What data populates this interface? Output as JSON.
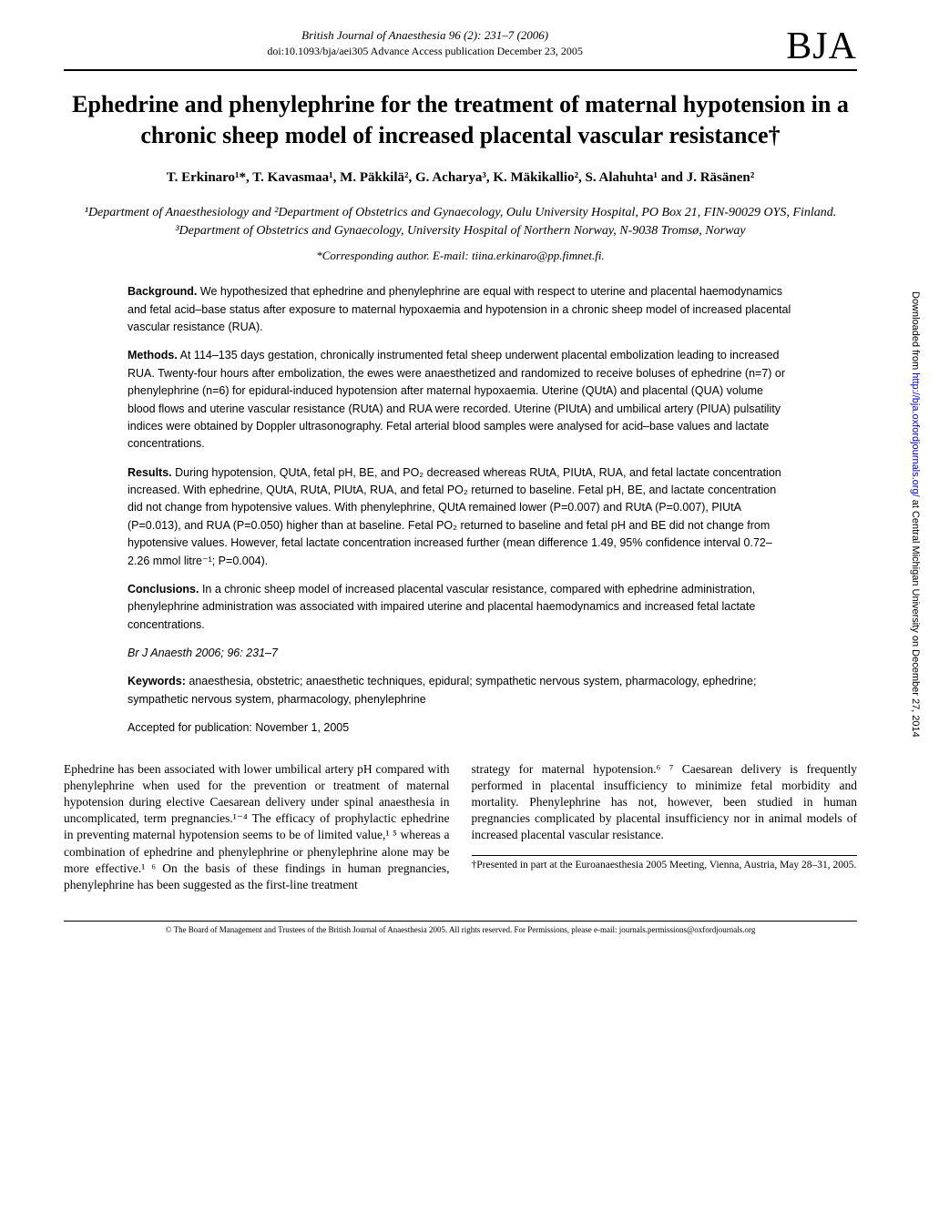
{
  "header": {
    "meta": "British Journal of Anaesthesia 96 (2): 231–7 (2006)",
    "doi": "doi:10.1093/bja/aei305   Advance Access publication December 23, 2005",
    "logo": "BJA"
  },
  "title": "Ephedrine and phenylephrine for the treatment of maternal hypotension in a chronic sheep model of increased placental vascular resistance†",
  "authors": "T. Erkinaro¹*, T. Kavasmaa¹, M. Päkkilä², G. Acharya³, K. Mäkikallio², S. Alahuhta¹ and J. Räsänen²",
  "affiliations": "¹Department of Anaesthesiology and ²Department of Obstetrics and Gynaecology, Oulu University Hospital, PO Box 21, FIN-90029 OYS, Finland. ³Department of Obstetrics and Gynaecology, University Hospital of Northern Norway, N-9038 Tromsø, Norway",
  "corresponding": "*Corresponding author. E-mail: tiina.erkinaro@pp.fimnet.fi.",
  "abstract": {
    "background_label": "Background.",
    "background": " We hypothesized that ephedrine and phenylephrine are equal with respect to uterine and placental haemodynamics and fetal acid–base status after exposure to maternal hypoxaemia and hypotension in a chronic sheep model of increased placental vascular resistance (RUA).",
    "methods_label": "Methods.",
    "methods": " At 114–135 days gestation, chronically instrumented fetal sheep underwent placental embolization leading to increased RUA. Twenty-four hours after embolization, the ewes were anaesthetized and randomized to receive boluses of ephedrine (n=7) or phenylephrine (n=6) for epidural-induced hypotension after maternal hypoxaemia. Uterine (QUtA) and placental (QUA) volume blood flows and uterine vascular resistance (RUtA) and RUA were recorded. Uterine (PIUtA) and umbilical artery (PIUA) pulsatility indices were obtained by Doppler ultrasonography. Fetal arterial blood samples were analysed for acid–base values and lactate concentrations.",
    "results_label": "Results.",
    "results": " During hypotension, QUtA, fetal pH, BE, and PO₂ decreased whereas RUtA, PIUtA, RUA, and fetal lactate concentration increased. With ephedrine, QUtA, RUtA, PIUtA, RUA, and fetal PO₂ returned to baseline. Fetal pH, BE, and lactate concentration did not change from hypotensive values. With phenylephrine, QUtA remained lower (P=0.007) and RUtA (P=0.007), PIUtA (P=0.013), and RUA (P=0.050) higher than at baseline. Fetal PO₂ returned to baseline and fetal pH and BE did not change from hypotensive values. However, fetal lactate concentration increased further (mean difference 1.49, 95% confidence interval 0.72–2.26 mmol litre⁻¹; P=0.004).",
    "conclusions_label": "Conclusions.",
    "conclusions": " In a chronic sheep model of increased placental vascular resistance, compared with ephedrine administration, phenylephrine administration was associated with impaired uterine and placental haemodynamics and increased fetal lactate concentrations.",
    "citation": "Br J Anaesth 2006; 96: 231–7",
    "keywords_label": "Keywords:",
    "keywords": " anaesthesia, obstetric; anaesthetic techniques, epidural; sympathetic nervous system, pharmacology, ephedrine; sympathetic nervous system, pharmacology, phenylephrine",
    "accepted": "Accepted for publication: November 1, 2005"
  },
  "body": {
    "col1": "Ephedrine has been associated with lower umbilical artery pH compared with phenylephrine when used for the prevention or treatment of maternal hypotension during elective Caesarean delivery under spinal anaesthesia in uncomplicated, term pregnancies.¹⁻⁴ The efficacy of prophylactic ephedrine in preventing maternal hypotension seems to be of limited value,¹ ⁵ whereas a combination of ephedrine and phenylephrine or phenylephrine alone may be more effective.¹ ⁶ On the basis of these findings in human pregnancies, phenylephrine has been suggested as the first-line treatment",
    "col2": "strategy for maternal hypotension.⁶ ⁷ Caesarean delivery is frequently performed in placental insufficiency to minimize fetal morbidity and mortality. Phenylephrine has not, however, been studied in human pregnancies complicated by placental insufficiency nor in animal models of increased placental vascular resistance.",
    "footnote": "†Presented in part at the Euroanaesthesia 2005 Meeting, Vienna, Austria, May 28–31, 2005."
  },
  "copyright": "© The Board of Management and Trustees of the British Journal of Anaesthesia 2005. All rights reserved. For Permissions, please e-mail: journals.permissions@oxfordjournals.org",
  "sidetext": {
    "prefix": "Downloaded from ",
    "link": "http://bja.oxfordjournals.org/",
    "suffix": " at Central Michigan University on December 27, 2014"
  }
}
